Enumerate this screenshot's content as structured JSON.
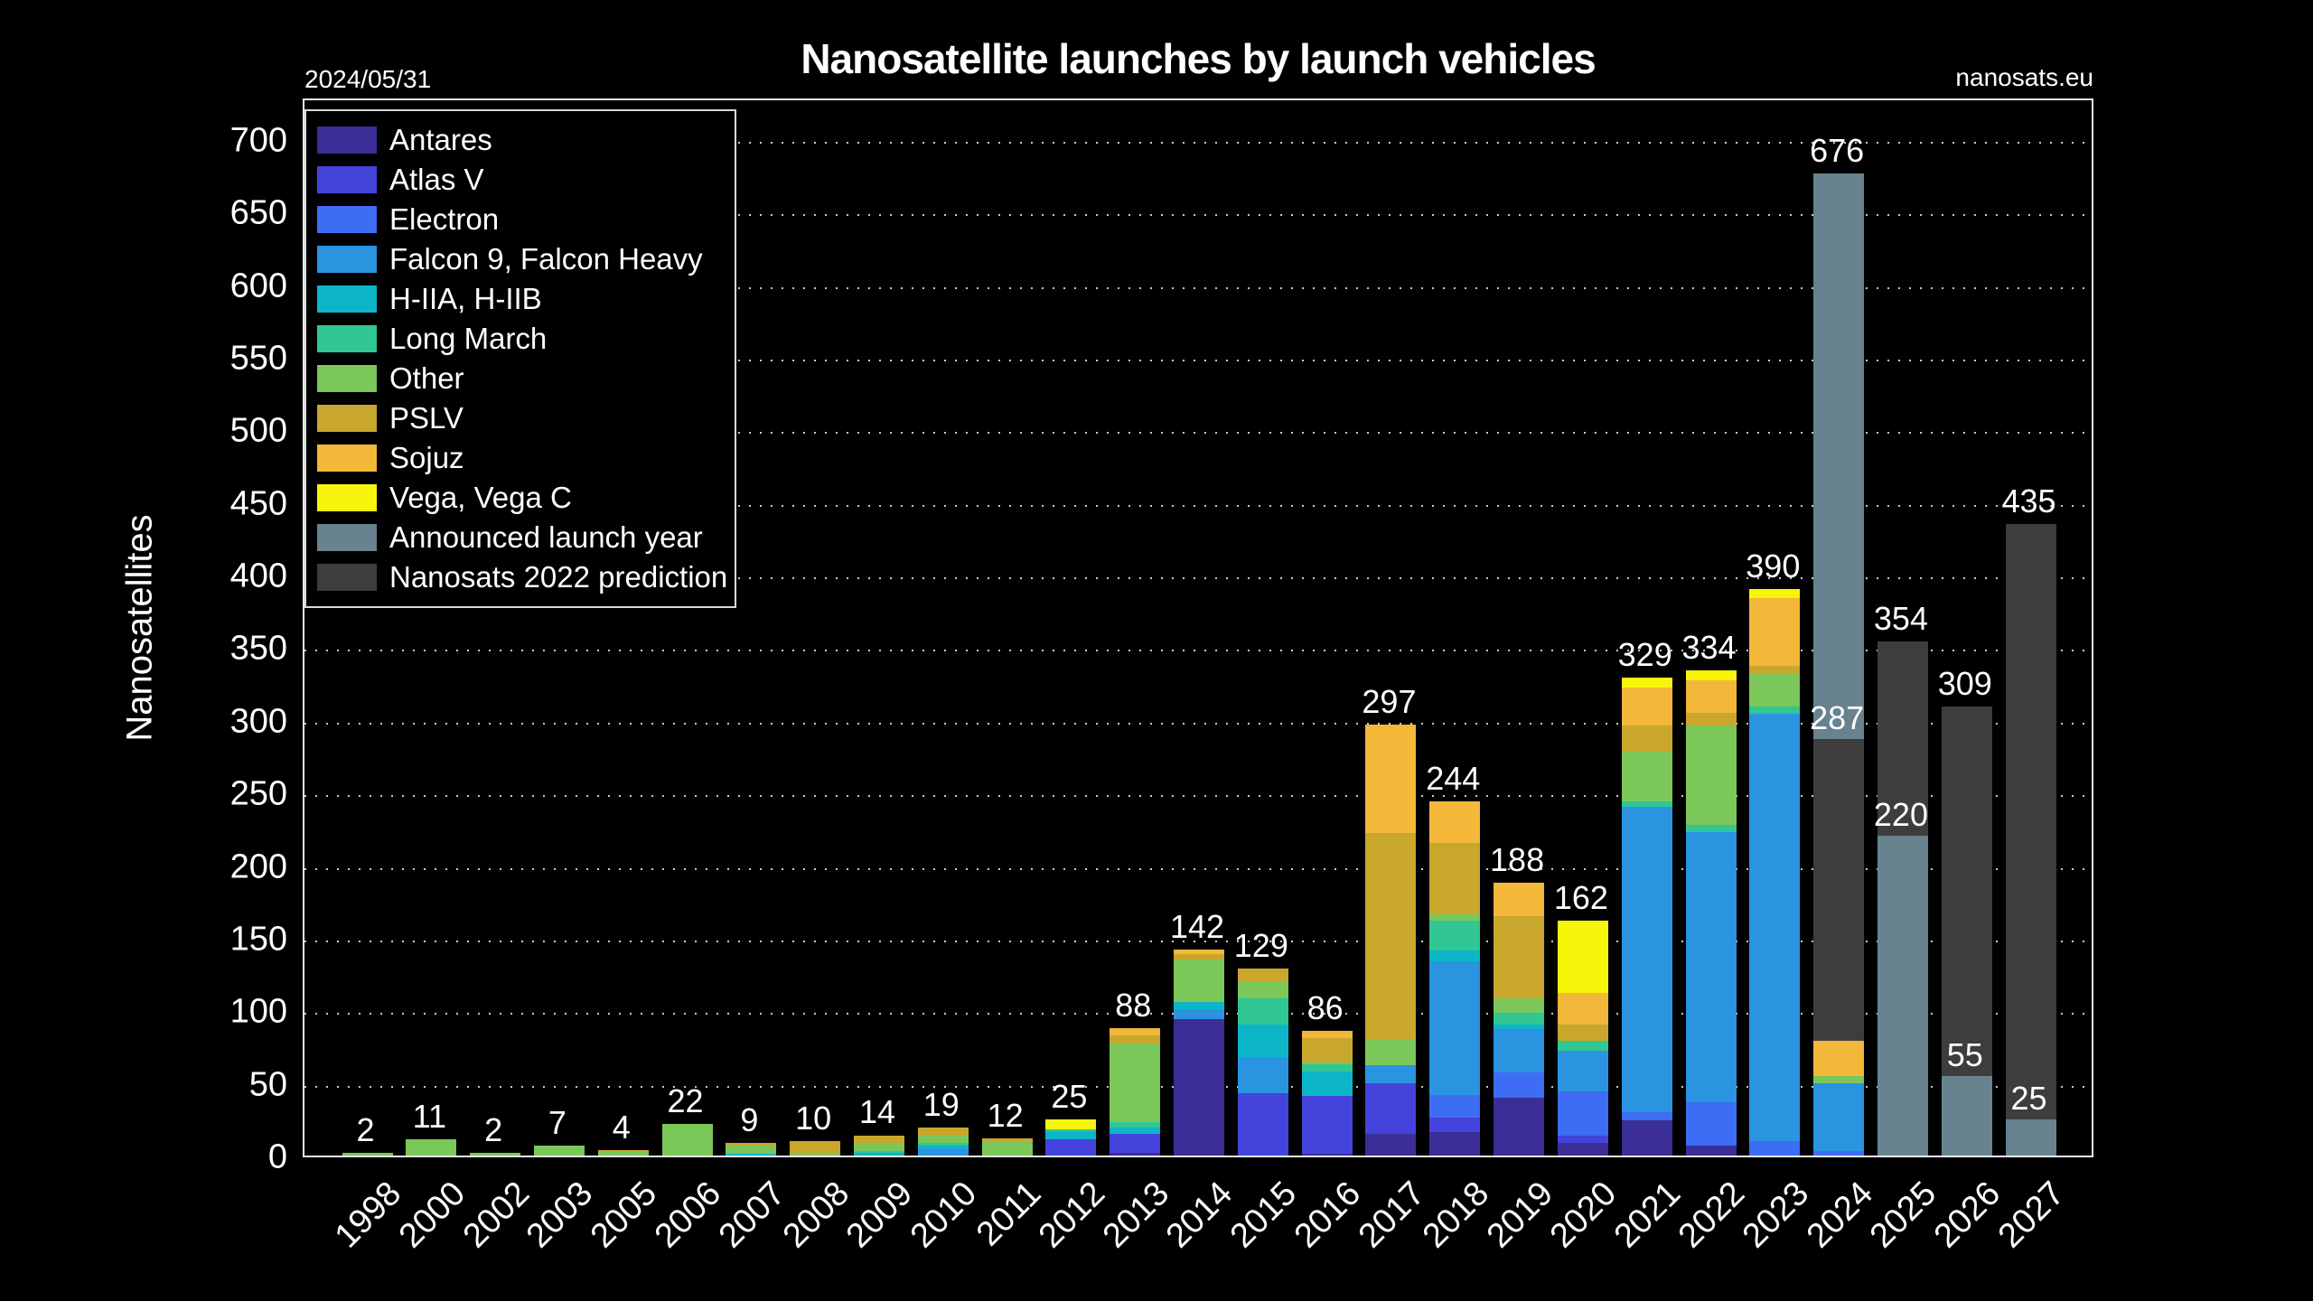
{
  "header": {
    "date": "2024/05/31",
    "source": "nanosats.eu"
  },
  "chart_data": {
    "type": "bar",
    "stacked": true,
    "title": "Nanosatellite launches by launch vehicles",
    "ylabel": "Nanosatellites",
    "xlabel": "",
    "ylim": [
      0,
      729
    ],
    "y_ticks": [
      0,
      50,
      100,
      150,
      200,
      250,
      300,
      350,
      400,
      450,
      500,
      550,
      600,
      650,
      700
    ],
    "grid": "dotted horizontal lines every 50",
    "legend_position": "upper-left",
    "background_color": "#000000",
    "legend": [
      {
        "key": "antares",
        "label": "Antares",
        "color": "#3b2e96"
      },
      {
        "key": "atlas",
        "label": "Atlas V",
        "color": "#4443dc"
      },
      {
        "key": "electron",
        "label": "Electron",
        "color": "#3d6cf5"
      },
      {
        "key": "falcon",
        "label": "Falcon 9, Falcon Heavy",
        "color": "#2b94e0"
      },
      {
        "key": "h2",
        "label": "H-IIA, H-IIB",
        "color": "#0cb6c8"
      },
      {
        "key": "longmarch",
        "label": "Long March",
        "color": "#30c795"
      },
      {
        "key": "other",
        "label": "Other",
        "color": "#7cc75a"
      },
      {
        "key": "pslv",
        "label": "PSLV",
        "color": "#c9a72d"
      },
      {
        "key": "sojuz",
        "label": "Sojuz",
        "color": "#f3b73a"
      },
      {
        "key": "vega",
        "label": "Vega, Vega C",
        "color": "#f7f50a"
      },
      {
        "key": "announced",
        "label": "Announced launch year",
        "color": "#68828f"
      },
      {
        "key": "prediction",
        "label": "Nanosats 2022 prediction",
        "color": "#3d3d3d"
      }
    ],
    "categories": [
      "1998",
      "2000",
      "2002",
      "2003",
      "2005",
      "2006",
      "2007",
      "2008",
      "2009",
      "2010",
      "2011",
      "2012",
      "2013",
      "2014",
      "2015",
      "2016",
      "2017",
      "2018",
      "2019",
      "2020",
      "2021",
      "2022",
      "2023",
      "2024",
      "2025",
      "2026",
      "2027"
    ],
    "years": [
      {
        "year": "1998",
        "total": 2,
        "label": "2",
        "segments": [
          [
            "other",
            2
          ]
        ]
      },
      {
        "year": "2000",
        "total": 11,
        "label": "11",
        "segments": [
          [
            "other",
            11
          ]
        ]
      },
      {
        "year": "2002",
        "total": 2,
        "label": "2",
        "segments": [
          [
            "other",
            2
          ]
        ]
      },
      {
        "year": "2003",
        "total": 7,
        "label": "7",
        "segments": [
          [
            "other",
            7
          ]
        ]
      },
      {
        "year": "2005",
        "total": 4,
        "label": "4",
        "segments": [
          [
            "other",
            3
          ],
          [
            "pslv",
            1
          ]
        ]
      },
      {
        "year": "2006",
        "total": 22,
        "label": "22",
        "segments": [
          [
            "other",
            22
          ]
        ]
      },
      {
        "year": "2007",
        "total": 9,
        "label": "9",
        "segments": [
          [
            "h2",
            1
          ],
          [
            "other",
            6
          ],
          [
            "pslv",
            2
          ]
        ]
      },
      {
        "year": "2008",
        "total": 10,
        "label": "10",
        "segments": [
          [
            "other",
            2
          ],
          [
            "pslv",
            8
          ]
        ]
      },
      {
        "year": "2009",
        "total": 14,
        "label": "14",
        "segments": [
          [
            "h2",
            2
          ],
          [
            "longmarch",
            1
          ],
          [
            "other",
            6
          ],
          [
            "pslv",
            5
          ]
        ]
      },
      {
        "year": "2010",
        "total": 19,
        "label": "19",
        "segments": [
          [
            "falcon",
            5
          ],
          [
            "h2",
            2
          ],
          [
            "longmarch",
            2
          ],
          [
            "other",
            5
          ],
          [
            "pslv",
            5
          ]
        ]
      },
      {
        "year": "2011",
        "total": 12,
        "label": "12",
        "segments": [
          [
            "other",
            10
          ],
          [
            "pslv",
            2
          ]
        ]
      },
      {
        "year": "2012",
        "total": 25,
        "label": "25",
        "segments": [
          [
            "atlas",
            11
          ],
          [
            "h2",
            6
          ],
          [
            "longmarch",
            1
          ],
          [
            "vega",
            7
          ]
        ]
      },
      {
        "year": "2013",
        "total": 88,
        "label": "88",
        "segments": [
          [
            "antares",
            2
          ],
          [
            "atlas",
            13
          ],
          [
            "h2",
            4
          ],
          [
            "longmarch",
            4
          ],
          [
            "other",
            54
          ],
          [
            "pslv",
            6
          ],
          [
            "sojuz",
            5
          ]
        ]
      },
      {
        "year": "2014",
        "total": 142,
        "label": "142",
        "segments": [
          [
            "antares",
            94
          ],
          [
            "falcon",
            7
          ],
          [
            "h2",
            5
          ],
          [
            "other",
            29
          ],
          [
            "pslv",
            4
          ],
          [
            "sojuz",
            3
          ]
        ]
      },
      {
        "year": "2015",
        "total": 129,
        "label": "129",
        "segments": [
          [
            "atlas",
            43
          ],
          [
            "falcon",
            25
          ],
          [
            "h2",
            22
          ],
          [
            "longmarch",
            18
          ],
          [
            "other",
            12
          ],
          [
            "pslv",
            9
          ]
        ]
      },
      {
        "year": "2016",
        "total": 86,
        "label": "86",
        "segments": [
          [
            "antares",
            1
          ],
          [
            "atlas",
            40
          ],
          [
            "h2",
            17
          ],
          [
            "longmarch",
            5
          ],
          [
            "other",
            1
          ],
          [
            "pslv",
            17
          ],
          [
            "sojuz",
            5
          ]
        ]
      },
      {
        "year": "2017",
        "total": 297,
        "label": "297",
        "segments": [
          [
            "antares",
            15
          ],
          [
            "atlas",
            35
          ],
          [
            "falcon",
            12
          ],
          [
            "other",
            18
          ],
          [
            "pslv",
            142
          ],
          [
            "sojuz",
            75
          ]
        ]
      },
      {
        "year": "2018",
        "total": 244,
        "label": "244",
        "segments": [
          [
            "antares",
            16
          ],
          [
            "atlas",
            10
          ],
          [
            "electron",
            16
          ],
          [
            "falcon",
            92
          ],
          [
            "h2",
            7
          ],
          [
            "longmarch",
            21
          ],
          [
            "other",
            4
          ],
          [
            "pslv",
            49
          ],
          [
            "sojuz",
            29
          ]
        ]
      },
      {
        "year": "2019",
        "total": 188,
        "label": "188",
        "segments": [
          [
            "antares",
            40
          ],
          [
            "electron",
            17
          ],
          [
            "falcon",
            30
          ],
          [
            "h2",
            3
          ],
          [
            "longmarch",
            8
          ],
          [
            "other",
            10
          ],
          [
            "pslv",
            57
          ],
          [
            "sojuz",
            23
          ]
        ]
      },
      {
        "year": "2020",
        "total": 162,
        "label": "162",
        "segments": [
          [
            "antares",
            9
          ],
          [
            "atlas",
            5
          ],
          [
            "electron",
            30
          ],
          [
            "falcon",
            28
          ],
          [
            "longmarch",
            7
          ],
          [
            "pslv",
            11
          ],
          [
            "sojuz",
            22
          ],
          [
            "vega",
            50
          ]
        ]
      },
      {
        "year": "2021",
        "total": 329,
        "label": "329",
        "segments": [
          [
            "antares",
            24
          ],
          [
            "electron",
            6
          ],
          [
            "falcon",
            210
          ],
          [
            "longmarch",
            4
          ],
          [
            "other",
            34
          ],
          [
            "pslv",
            18
          ],
          [
            "sojuz",
            26
          ],
          [
            "vega",
            7
          ]
        ]
      },
      {
        "year": "2022",
        "total": 334,
        "label": "334",
        "segments": [
          [
            "antares",
            7
          ],
          [
            "electron",
            30
          ],
          [
            "falcon",
            186
          ],
          [
            "longmarch",
            5
          ],
          [
            "other",
            68
          ],
          [
            "pslv",
            9
          ],
          [
            "sojuz",
            22
          ],
          [
            "vega",
            7
          ]
        ]
      },
      {
        "year": "2023",
        "total": 390,
        "label": "390",
        "segments": [
          [
            "electron",
            10
          ],
          [
            "falcon",
            294
          ],
          [
            "longmarch",
            5
          ],
          [
            "other",
            23
          ],
          [
            "pslv",
            5
          ],
          [
            "sojuz",
            47
          ],
          [
            "vega",
            6
          ]
        ]
      },
      {
        "year": "2024",
        "total": 676,
        "label": "676",
        "sub_label": "287",
        "sub_value": 287,
        "segments": [
          [
            "electron",
            3
          ],
          [
            "falcon",
            47
          ],
          [
            "other",
            5
          ],
          [
            "sojuz",
            24
          ],
          [
            "prediction",
            208
          ],
          [
            "announced",
            389
          ]
        ]
      },
      {
        "year": "2025",
        "total": 354,
        "label": "354",
        "sub_label": "220",
        "sub_value": 220,
        "segments": [
          [
            "announced",
            220
          ],
          [
            "prediction",
            134
          ]
        ]
      },
      {
        "year": "2026",
        "total": 309,
        "label": "309",
        "sub_label": "55",
        "sub_value": 55,
        "segments": [
          [
            "announced",
            55
          ],
          [
            "prediction",
            254
          ]
        ]
      },
      {
        "year": "2027",
        "total": 435,
        "label": "435",
        "sub_label": "25",
        "sub_value": 25,
        "segments": [
          [
            "announced",
            25
          ],
          [
            "prediction",
            410
          ]
        ]
      }
    ]
  }
}
